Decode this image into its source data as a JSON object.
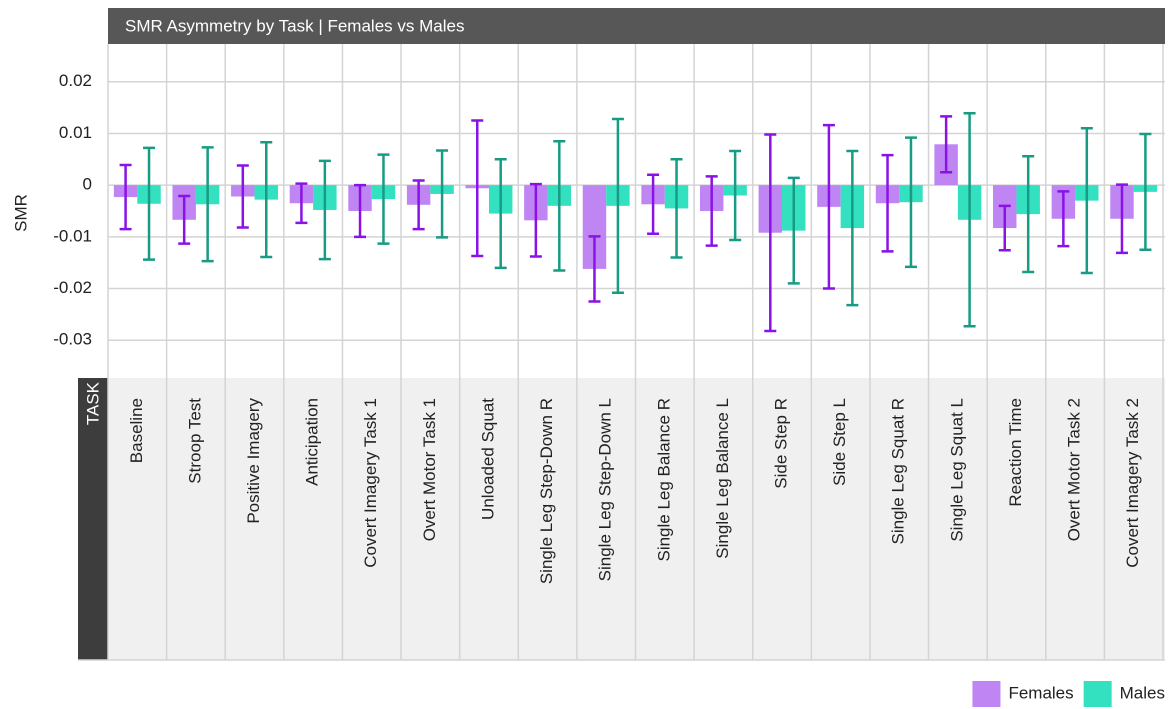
{
  "chart_data": {
    "type": "bar",
    "title": "SMR Asymmetry by Task | Females vs Males",
    "ylabel": "SMR",
    "xlabel": "TASK",
    "categories": [
      "Baseline",
      "Stroop  Test",
      "Positive Imagery",
      "Anticipation",
      "Covert Imagery Task 1",
      "Overt Motor Task 1",
      "Unloaded Squat",
      "Single Leg Step-Down R",
      "Single Leg Step-Down L",
      "Single Leg Balance R",
      "Single Leg Balance L",
      "Side Step R",
      "Side Step L",
      "Single Leg Squat R",
      "Single Leg Squat L",
      "Reaction Time",
      "Overt Motor Task 2",
      "Covert Imagery Task 2"
    ],
    "series": [
      {
        "name": "Females",
        "color": "#be85f3",
        "error_color": "#8b12e6",
        "values": [
          -0.0023,
          -0.0067,
          -0.0022,
          -0.0035,
          -0.005,
          -0.0038,
          -0.0006,
          -0.0068,
          -0.0162,
          -0.0037,
          -0.005,
          -0.0092,
          -0.0042,
          -0.0035,
          0.0079,
          -0.0083,
          -0.0065,
          -0.0065
        ],
        "errors": [
          0.0062,
          0.0046,
          0.006,
          0.0038,
          0.005,
          0.0047,
          0.0131,
          0.007,
          0.0063,
          0.0057,
          0.0067,
          0.019,
          0.0158,
          0.0093,
          0.0054,
          0.0043,
          0.0053,
          0.0066
        ]
      },
      {
        "name": "Males",
        "color": "#33e0c0",
        "error_color": "#179b82",
        "values": [
          -0.0036,
          -0.0037,
          -0.0028,
          -0.0048,
          -0.0027,
          -0.0017,
          -0.0055,
          -0.004,
          -0.004,
          -0.0045,
          -0.002,
          -0.0088,
          -0.0083,
          -0.0033,
          -0.0067,
          -0.0056,
          -0.003,
          -0.0013
        ],
        "errors": [
          0.0108,
          0.011,
          0.0111,
          0.0095,
          0.0086,
          0.0084,
          0.0105,
          0.0125,
          0.0168,
          0.0095,
          0.0086,
          0.0102,
          0.0149,
          0.0125,
          0.0206,
          0.0112,
          0.014,
          0.0112
        ]
      }
    ],
    "ylim": [
      -0.0373,
      0.0273
    ],
    "yticks": [
      0.02,
      0.01,
      0,
      -0.01,
      -0.02,
      -0.03
    ],
    "grid": true,
    "legend": "bottom-right"
  }
}
